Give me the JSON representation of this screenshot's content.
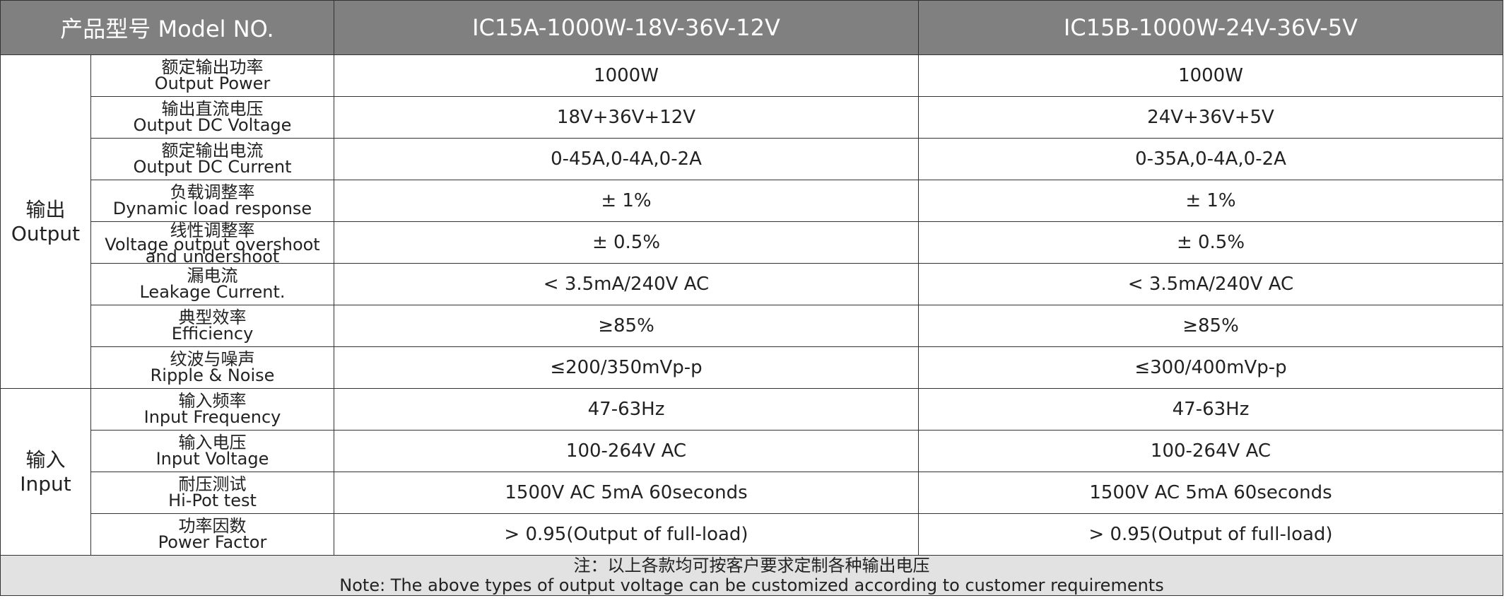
{
  "header": {
    "model_label": "产品型号 Model NO.",
    "model_a": "IC15A-1000W-18V-36V-12V",
    "model_b": "IC15B-1000W-24V-36V-5V"
  },
  "groups": {
    "output": {
      "zh": "输出",
      "en": "Output"
    },
    "input": {
      "zh": "输入",
      "en": "Input"
    }
  },
  "rows": [
    {
      "zh": "额定输出功率",
      "en": "Output Power",
      "a": "1000W",
      "b": "1000W"
    },
    {
      "zh": "输出直流电压",
      "en": "Output DC Voltage",
      "a": "18V+36V+12V",
      "b": "24V+36V+5V"
    },
    {
      "zh": "额定输出电流",
      "en": "Output DC Current",
      "a": "0-45A,0-4A,0-2A",
      "b": "0-35A,0-4A,0-2A"
    },
    {
      "zh": "负载调整率",
      "en": "Dynamic load response",
      "a": "± 1%",
      "b": "± 1%"
    },
    {
      "zh": "线性调整率",
      "en": "Voltage output overshoot and undershoot",
      "a": "± 0.5%",
      "b": "± 0.5%"
    },
    {
      "zh": "漏电流",
      "en": "Leakage Current.",
      "a": "< 3.5mA/240V AC",
      "b": "< 3.5mA/240V AC"
    },
    {
      "zh": "典型效率",
      "en": "Efficiency",
      "a": "≥85%",
      "b": "≥85%"
    },
    {
      "zh": "纹波与噪声",
      "en": "Ripple & Noise",
      "a": "≤200/350mVp-p",
      "b": "≤300/400mVp-p"
    },
    {
      "zh": "输入频率",
      "en": "Input Frequency",
      "a": "47-63Hz",
      "b": "47-63Hz"
    },
    {
      "zh": "输入电压",
      "en": "Input Voltage",
      "a": "100-264V AC",
      "b": "100-264V AC"
    },
    {
      "zh": "耐压测试",
      "en": "Hi-Pot test",
      "a": "1500V AC 5mA 60seconds",
      "b": "1500V AC 5mA 60seconds"
    },
    {
      "zh": "功率因数",
      "en": "Power Factor",
      "a": "> 0.95(Output of full-load)",
      "b": "> 0.95(Output of full-load)"
    }
  ],
  "note": {
    "zh": "注：以上各款均可按客户要求定制各种输出电压",
    "en": "Note: The above types of output voltage can be customized according to customer requirements"
  }
}
